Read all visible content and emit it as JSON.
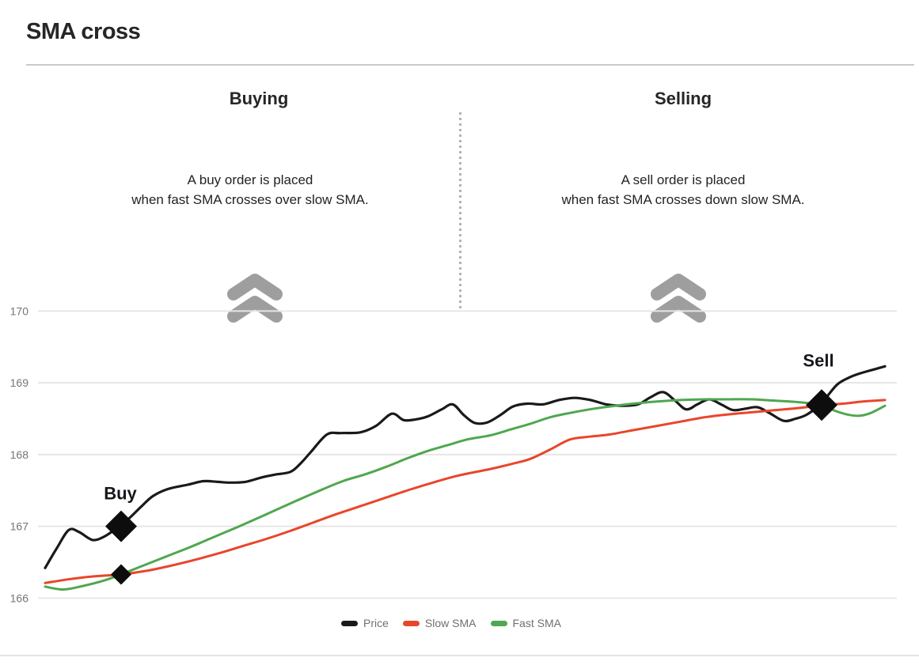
{
  "page": {
    "title": "SMA cross"
  },
  "sections": {
    "buying": {
      "title": "Buying",
      "line1": "A buy order is placed",
      "line2": "when fast SMA crosses over slow SMA."
    },
    "selling": {
      "title": "Selling",
      "line1": "A sell order is placed",
      "line2": "when fast SMA crosses down slow SMA."
    }
  },
  "colors": {
    "price": "#1a1a1a",
    "slow_sma": "#e8462b",
    "fast_sma": "#4fa74f",
    "grid": "#e6e6e6",
    "tick_text": "#757575",
    "marker": "#0d0d0d",
    "chevron": "#9e9e9e",
    "divider_dotted": "#b3b3b3",
    "title_rule": "#c9c9c9"
  },
  "chart_data": {
    "type": "line",
    "title": "SMA cross",
    "xlabel": "",
    "ylabel": "",
    "ylim": [
      166,
      170
    ],
    "yticks": [
      166,
      167,
      168,
      169,
      170
    ],
    "grid": "horizontal-only",
    "legend_position": "bottom-center",
    "x_unit": "px-offset (no x axis labels shown)",
    "series": [
      {
        "name": "Price",
        "color": "#1a1a1a",
        "width": 3.2,
        "points": [
          [
            57,
            166.42
          ],
          [
            72,
            166.7
          ],
          [
            87,
            166.95
          ],
          [
            100,
            166.92
          ],
          [
            117,
            166.81
          ],
          [
            132,
            166.86
          ],
          [
            147,
            166.97
          ],
          [
            162,
            167.1
          ],
          [
            178,
            167.27
          ],
          [
            193,
            167.42
          ],
          [
            212,
            167.52
          ],
          [
            237,
            167.58
          ],
          [
            257,
            167.63
          ],
          [
            275,
            167.62
          ],
          [
            290,
            167.61
          ],
          [
            310,
            167.62
          ],
          [
            330,
            167.68
          ],
          [
            347,
            167.72
          ],
          [
            367,
            167.76
          ],
          [
            380,
            167.88
          ],
          [
            393,
            168.04
          ],
          [
            413,
            168.28
          ],
          [
            430,
            168.3
          ],
          [
            455,
            168.31
          ],
          [
            475,
            168.4
          ],
          [
            495,
            168.57
          ],
          [
            510,
            168.48
          ],
          [
            525,
            168.49
          ],
          [
            540,
            168.53
          ],
          [
            558,
            168.63
          ],
          [
            572,
            168.7
          ],
          [
            586,
            168.55
          ],
          [
            600,
            168.44
          ],
          [
            616,
            168.45
          ],
          [
            632,
            168.55
          ],
          [
            648,
            168.67
          ],
          [
            666,
            168.71
          ],
          [
            686,
            168.7
          ],
          [
            706,
            168.76
          ],
          [
            726,
            168.79
          ],
          [
            746,
            168.76
          ],
          [
            766,
            168.7
          ],
          [
            786,
            168.68
          ],
          [
            806,
            168.7
          ],
          [
            822,
            168.8
          ],
          [
            838,
            168.87
          ],
          [
            853,
            168.75
          ],
          [
            867,
            168.63
          ],
          [
            881,
            168.7
          ],
          [
            896,
            168.77
          ],
          [
            911,
            168.7
          ],
          [
            926,
            168.62
          ],
          [
            942,
            168.64
          ],
          [
            957,
            168.66
          ],
          [
            972,
            168.58
          ],
          [
            990,
            168.47
          ],
          [
            1005,
            168.5
          ],
          [
            1018,
            168.55
          ],
          [
            1032,
            168.66
          ],
          [
            1044,
            168.8
          ],
          [
            1058,
            168.98
          ],
          [
            1072,
            169.07
          ],
          [
            1086,
            169.13
          ],
          [
            1102,
            169.18
          ],
          [
            1118,
            169.23
          ]
        ]
      },
      {
        "name": "Slow SMA",
        "color": "#e8462b",
        "width": 3,
        "points": [
          [
            57,
            166.21
          ],
          [
            85,
            166.26
          ],
          [
            115,
            166.3
          ],
          [
            153,
            166.33
          ],
          [
            185,
            166.38
          ],
          [
            215,
            166.45
          ],
          [
            245,
            166.53
          ],
          [
            275,
            166.62
          ],
          [
            305,
            166.72
          ],
          [
            335,
            166.82
          ],
          [
            365,
            166.93
          ],
          [
            395,
            167.05
          ],
          [
            425,
            167.17
          ],
          [
            455,
            167.28
          ],
          [
            490,
            167.41
          ],
          [
            520,
            167.52
          ],
          [
            550,
            167.62
          ],
          [
            580,
            167.71
          ],
          [
            620,
            167.8
          ],
          [
            650,
            167.88
          ],
          [
            670,
            167.94
          ],
          [
            695,
            168.07
          ],
          [
            720,
            168.21
          ],
          [
            745,
            168.25
          ],
          [
            770,
            168.28
          ],
          [
            800,
            168.34
          ],
          [
            830,
            168.4
          ],
          [
            860,
            168.46
          ],
          [
            890,
            168.52
          ],
          [
            920,
            168.56
          ],
          [
            950,
            168.59
          ],
          [
            980,
            168.62
          ],
          [
            1010,
            168.65
          ],
          [
            1038,
            168.69
          ],
          [
            1065,
            168.71
          ],
          [
            1090,
            168.74
          ],
          [
            1118,
            168.76
          ]
        ]
      },
      {
        "name": "Fast SMA",
        "color": "#4fa74f",
        "width": 3,
        "points": [
          [
            57,
            166.16
          ],
          [
            80,
            166.12
          ],
          [
            105,
            166.17
          ],
          [
            130,
            166.24
          ],
          [
            153,
            166.33
          ],
          [
            180,
            166.45
          ],
          [
            210,
            166.58
          ],
          [
            240,
            166.71
          ],
          [
            270,
            166.85
          ],
          [
            300,
            166.99
          ],
          [
            333,
            167.15
          ],
          [
            367,
            167.32
          ],
          [
            400,
            167.48
          ],
          [
            433,
            167.63
          ],
          [
            460,
            167.72
          ],
          [
            488,
            167.83
          ],
          [
            515,
            167.95
          ],
          [
            540,
            168.05
          ],
          [
            565,
            168.13
          ],
          [
            590,
            168.21
          ],
          [
            620,
            168.27
          ],
          [
            645,
            168.35
          ],
          [
            670,
            168.43
          ],
          [
            695,
            168.52
          ],
          [
            720,
            168.58
          ],
          [
            745,
            168.63
          ],
          [
            770,
            168.67
          ],
          [
            800,
            168.71
          ],
          [
            830,
            168.74
          ],
          [
            860,
            168.76
          ],
          [
            890,
            168.77
          ],
          [
            920,
            168.77
          ],
          [
            950,
            168.77
          ],
          [
            980,
            168.75
          ],
          [
            1010,
            168.73
          ],
          [
            1038,
            168.69
          ],
          [
            1055,
            168.61
          ],
          [
            1070,
            168.56
          ],
          [
            1085,
            168.54
          ],
          [
            1100,
            168.58
          ],
          [
            1118,
            168.68
          ]
        ]
      }
    ],
    "markers": [
      {
        "label": "Buy",
        "x": 153,
        "value": 167.0,
        "size": "large",
        "label_offset": [
          -1,
          -34
        ]
      },
      {
        "label": "",
        "x": 153,
        "value": 166.33,
        "size": "small",
        "label_offset": [
          0,
          0
        ]
      },
      {
        "label": "Sell",
        "x": 1038,
        "value": 168.69,
        "size": "large",
        "label_offset": [
          -4,
          -49
        ]
      }
    ]
  }
}
